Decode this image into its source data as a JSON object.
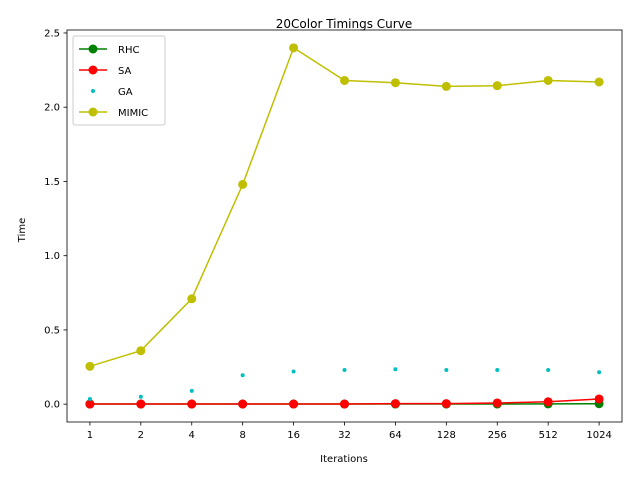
{
  "chart_data": {
    "type": "line",
    "title": "20Color Timings Curve",
    "xlabel": "Iterations",
    "ylabel": "Time",
    "x": [
      "1",
      "2",
      "4",
      "8",
      "16",
      "32",
      "64",
      "128",
      "256",
      "512",
      "1024"
    ],
    "ylim": [
      -0.12,
      2.52
    ],
    "yticks": [
      "0.0",
      "0.5",
      "1.0",
      "1.5",
      "2.0",
      "2.5"
    ],
    "ytick_values": [
      0.0,
      0.5,
      1.0,
      1.5,
      2.0,
      2.5
    ],
    "grid": false,
    "legend_position": "top-left",
    "series": [
      {
        "name": "RHC",
        "color": "#008000",
        "style": "line-marker",
        "values": [
          0.001,
          0.001,
          0.001,
          0.001,
          0.001,
          0.001,
          0.001,
          0.001,
          0.001,
          0.002,
          0.003
        ]
      },
      {
        "name": "SA",
        "color": "#ff0000",
        "style": "line-marker",
        "values": [
          0.001,
          0.001,
          0.001,
          0.001,
          0.001,
          0.001,
          0.004,
          0.004,
          0.008,
          0.016,
          0.035
        ]
      },
      {
        "name": "GA",
        "color": "#00bfbf",
        "style": "dots",
        "values": [
          0.035,
          0.05,
          0.09,
          0.195,
          0.22,
          0.23,
          0.235,
          0.23,
          0.23,
          0.23,
          0.215
        ]
      },
      {
        "name": "MIMIC",
        "color": "#bfbf00",
        "style": "line-marker",
        "values": [
          0.255,
          0.36,
          0.71,
          1.48,
          2.4,
          2.18,
          2.165,
          2.14,
          2.145,
          2.18,
          2.17
        ]
      }
    ]
  }
}
